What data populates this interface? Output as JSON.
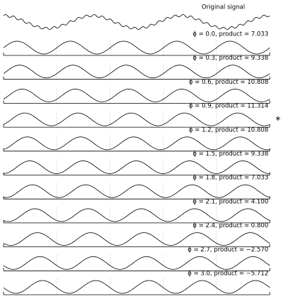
{
  "title": "Original signal",
  "panels": [
    {
      "phase": 0.0,
      "label": "ϕ = 0.0, product = 7.033"
    },
    {
      "phase": 0.3,
      "label": "ϕ = 0.3, product = 9.338"
    },
    {
      "phase": 0.6,
      "label": "ϕ = 0.6, product = 10.808"
    },
    {
      "phase": 0.9,
      "label": "ϕ = 0.9, product = 11.314",
      "marker": "*"
    },
    {
      "phase": 1.2,
      "label": "ϕ = 1.2, product = 10.808"
    },
    {
      "phase": 1.5,
      "label": "ϕ = 1.5, product = 9.338"
    },
    {
      "phase": 1.8,
      "label": "ϕ = 1.8, product = 7.033"
    },
    {
      "phase": 2.1,
      "label": "ϕ = 2.1, product = 4.100"
    },
    {
      "phase": 2.4,
      "label": "ϕ = 2.4, product = 0.800"
    },
    {
      "phase": 2.7,
      "label": "ϕ = 2.7, product = −2.570"
    },
    {
      "phase": 3.0,
      "label": "ϕ = 3.0, product = −5.712"
    }
  ]
}
